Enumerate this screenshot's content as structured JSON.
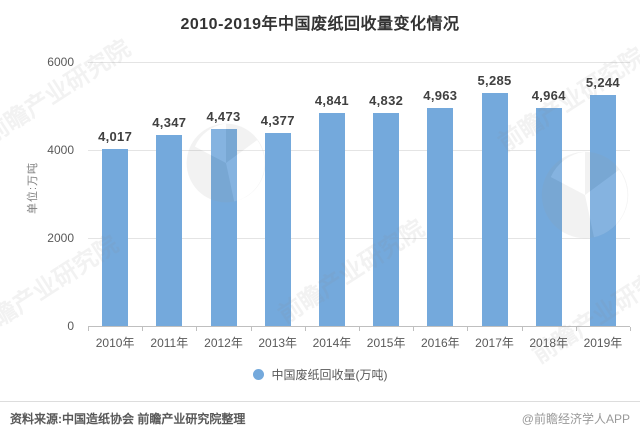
{
  "title": "2010-2019年中国废纸回收量变化情况",
  "y_axis": {
    "unit_label": "单位:万吨",
    "tick_labels": [
      "6000",
      "4000",
      "2000",
      "0"
    ]
  },
  "legend": {
    "label": "中国废纸回收量(万吨)",
    "marker_color": "#74A9DC"
  },
  "footer": {
    "source": "资料来源:中国造纸协会 前瞻产业研究院整理",
    "attribution": "@前瞻经济学人APP"
  },
  "watermark": {
    "text": "前瞻产业研究院"
  },
  "colors": {
    "bar": "#74A9DC",
    "gridline": "#E4E4E4",
    "axis_line": "#BFBFBF",
    "value_label": "#404040",
    "tick_text": "#595959"
  },
  "chart_data": {
    "type": "bar",
    "title": "2010-2019年中国废纸回收量变化情况",
    "categories": [
      "2010年",
      "2011年",
      "2012年",
      "2013年",
      "2014年",
      "2015年",
      "2016年",
      "2017年",
      "2018年",
      "2019年"
    ],
    "series": [
      {
        "name": "中国废纸回收量(万吨)",
        "values": [
          4017,
          4347,
          4473,
          4377,
          4841,
          4832,
          4963,
          5285,
          4964,
          5244
        ]
      }
    ],
    "xlabel": "",
    "ylabel": "单位:万吨",
    "ylim": [
      0,
      6000
    ],
    "yticks": [
      0,
      2000,
      4000,
      6000
    ],
    "grid": true,
    "legend_position": "bottom"
  }
}
